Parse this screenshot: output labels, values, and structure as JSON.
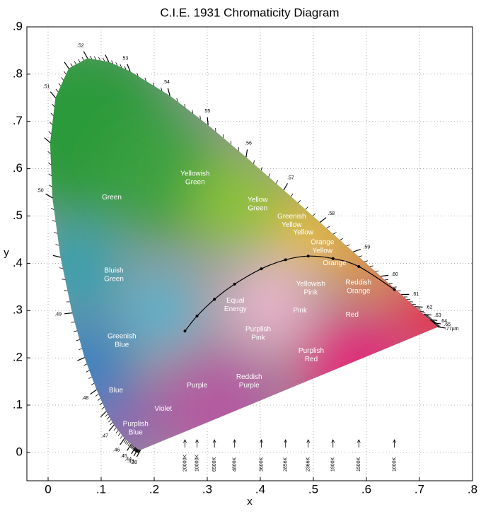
{
  "chart_data": {
    "type": "chromaticity",
    "title": "C.I.E. 1931 Chromaticity Diagram",
    "x_label": "x",
    "y_label": "y",
    "xlim": [
      -0.04,
      0.8
    ],
    "ylim": [
      -0.06,
      0.9
    ],
    "xticks": [
      0,
      {
        "value": 0.1,
        "label": ".1"
      },
      {
        "value": 0.2,
        "label": ".2"
      },
      {
        "value": 0.3,
        "label": ".3"
      },
      {
        "value": 0.4,
        "label": ".4"
      },
      {
        "value": 0.5,
        "label": ".5"
      },
      {
        "value": 0.6,
        "label": ".6"
      },
      {
        "value": 0.7,
        "label": ".7"
      },
      {
        "value": 0.8,
        "label": ".8"
      }
    ],
    "yticks": [
      0,
      {
        "value": 0.1,
        "label": ".1"
      },
      {
        "value": 0.2,
        "label": ".2"
      },
      {
        "value": 0.3,
        "label": ".3"
      },
      {
        "value": 0.4,
        "label": ".4"
      },
      {
        "value": 0.5,
        "label": ".5"
      },
      {
        "value": 0.6,
        "label": ".6"
      },
      {
        "value": 0.7,
        "label": ".7"
      },
      {
        "value": 0.8,
        "label": ".8"
      },
      {
        "value": 0.9,
        "label": ".9"
      }
    ],
    "grid": true,
    "locus_x": [
      0.1741,
      0.1689,
      0.1644,
      0.1566,
      0.144,
      0.1241,
      0.1096,
      0.0913,
      0.0687,
      0.0454,
      0.0235,
      0.0082,
      0.0039,
      0.0139,
      0.0389,
      0.0743,
      0.1142,
      0.1547,
      0.2296,
      0.3016,
      0.3731,
      0.4441,
      0.5125,
      0.5752,
      0.627,
      0.6658,
      0.6915,
      0.7079,
      0.719,
      0.726,
      0.7347
    ],
    "locus_y": [
      0.005,
      0.0069,
      0.0109,
      0.0177,
      0.0297,
      0.0578,
      0.0868,
      0.1327,
      0.2007,
      0.295,
      0.4127,
      0.5384,
      0.6548,
      0.7502,
      0.812,
      0.8338,
      0.8262,
      0.8059,
      0.7543,
      0.6923,
      0.6245,
      0.5547,
      0.4866,
      0.4242,
      0.3725,
      0.334,
      0.3083,
      0.292,
      0.2809,
      0.274,
      0.2653
    ],
    "locus_labels": [
      ".38",
      ".43",
      ".44",
      ".45",
      ".46",
      ".47",
      null,
      ".48",
      null,
      ".49",
      null,
      ".50",
      null,
      ".51",
      null,
      ".52",
      null,
      ".53",
      ".54",
      ".55",
      ".56",
      ".57",
      ".58",
      ".59",
      ".60",
      ".61",
      ".62",
      ".63",
      ".64",
      ".65",
      ".77µm"
    ],
    "temperature_x": [
      0.258,
      0.2807,
      0.3135,
      0.3516,
      0.402,
      0.4476,
      0.4903,
      0.537,
      0.5857,
      0.6528
    ],
    "temperature_y": [
      0.2567,
      0.2884,
      0.3237,
      0.3558,
      0.3883,
      0.4074,
      0.4152,
      0.41,
      0.3931,
      0.3444
    ],
    "temperature_labels": [
      "20000K",
      "10000K",
      "6500K",
      "4800K",
      "3600K",
      "2856K",
      "2366K",
      "1900K",
      "1500K",
      "1000K"
    ],
    "annotations": [
      {
        "lines": [
          "Yellowish",
          "Green"
        ],
        "x": 0.277,
        "y": 0.58
      },
      {
        "lines": [
          "Green"
        ],
        "x": 0.12,
        "y": 0.539
      },
      {
        "lines": [
          "Yellow",
          "Green"
        ],
        "x": 0.395,
        "y": 0.525
      },
      {
        "lines": [
          "Greenish",
          "Yellow"
        ],
        "x": 0.459,
        "y": 0.49
      },
      {
        "lines": [
          "Yellow"
        ],
        "x": 0.481,
        "y": 0.465
      },
      {
        "lines": [
          "Orange",
          "Yellow"
        ],
        "x": 0.517,
        "y": 0.435
      },
      {
        "lines": [
          "Orange"
        ],
        "x": 0.54,
        "y": 0.4
      },
      {
        "lines": [
          "Bluish",
          "Green"
        ],
        "x": 0.124,
        "y": 0.375
      },
      {
        "lines": [
          "Yellowish",
          "Pink"
        ],
        "x": 0.495,
        "y": 0.347
      },
      {
        "lines": [
          "Reddish",
          "Orange"
        ],
        "x": 0.585,
        "y": 0.35
      },
      {
        "lines": [
          "Equal",
          "Energy"
        ],
        "x": 0.353,
        "y": 0.312
      },
      {
        "lines": [
          "Pink"
        ],
        "x": 0.475,
        "y": 0.3
      },
      {
        "lines": [
          "Red"
        ],
        "x": 0.573,
        "y": 0.291
      },
      {
        "lines": [
          "Purplish",
          "Pink"
        ],
        "x": 0.396,
        "y": 0.251
      },
      {
        "lines": [
          "Greenish",
          "Blue"
        ],
        "x": 0.139,
        "y": 0.236
      },
      {
        "lines": [
          "Purplish",
          "Red"
        ],
        "x": 0.496,
        "y": 0.206
      },
      {
        "lines": [
          "Reddish",
          "Purple"
        ],
        "x": 0.379,
        "y": 0.15
      },
      {
        "lines": [
          "Purple"
        ],
        "x": 0.281,
        "y": 0.141
      },
      {
        "lines": [
          "Blue"
        ],
        "x": 0.128,
        "y": 0.131
      },
      {
        "lines": [
          "Violet"
        ],
        "x": 0.217,
        "y": 0.092
      },
      {
        "lines": [
          "Purplish",
          "Blue"
        ],
        "x": 0.165,
        "y": 0.051
      }
    ]
  }
}
